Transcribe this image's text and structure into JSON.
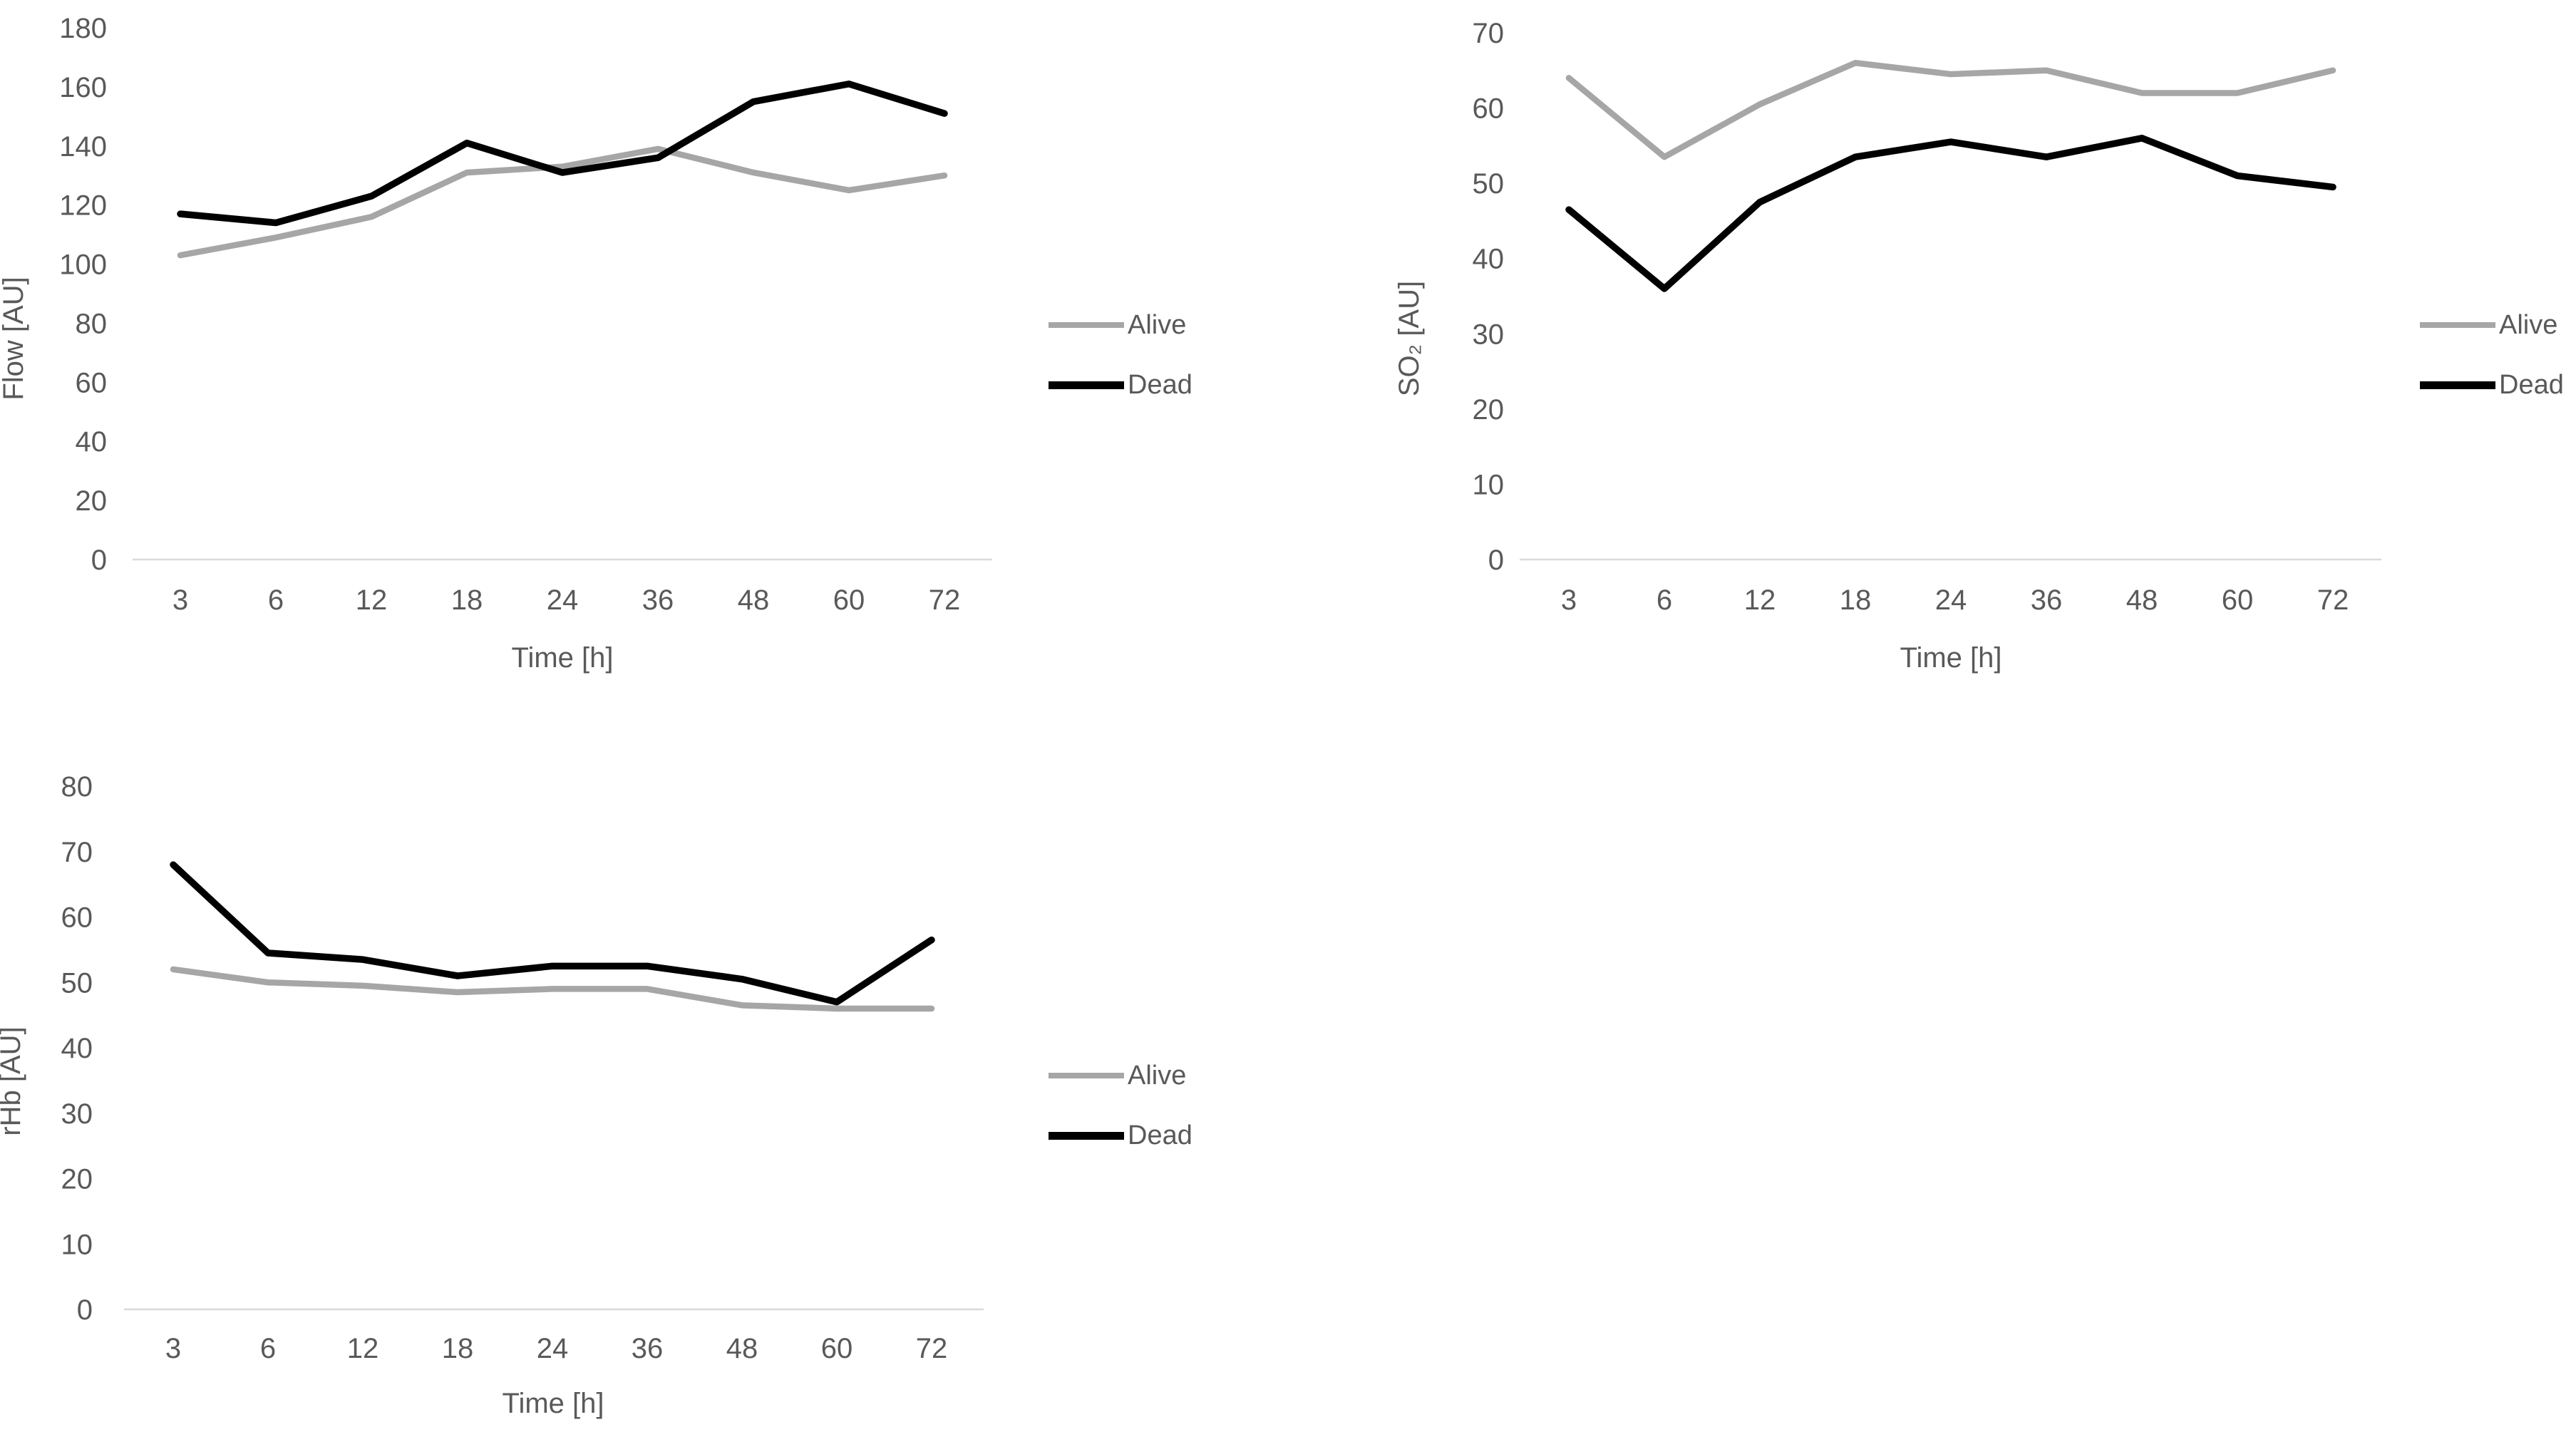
{
  "colors": {
    "alive": "#a6a6a6",
    "dead": "#000000",
    "axis": "#d9d9d9",
    "text": "#595959"
  },
  "chart_data": [
    {
      "id": "flow",
      "type": "line",
      "title": "",
      "xlabel": "Time [h]",
      "ylabel": "Flow [AU]",
      "categories": [
        "3",
        "6",
        "12",
        "18",
        "24",
        "36",
        "48",
        "60",
        "72"
      ],
      "ylim": [
        0,
        180
      ],
      "y_step": 20,
      "grid": false,
      "legend_position": "right",
      "series": [
        {
          "name": "Alive",
          "color_key": "alive",
          "values": [
            103,
            109,
            116,
            131,
            133,
            139,
            131,
            125,
            130
          ]
        },
        {
          "name": "Dead",
          "color_key": "dead",
          "values": [
            117,
            114,
            123,
            141,
            131,
            136,
            155,
            161,
            151
          ]
        }
      ]
    },
    {
      "id": "so2",
      "type": "line",
      "title": "",
      "xlabel": "Time [h]",
      "ylabel": "SO₂ [AU]",
      "categories": [
        "3",
        "6",
        "12",
        "18",
        "24",
        "36",
        "48",
        "60",
        "72"
      ],
      "ylim": [
        0,
        70
      ],
      "y_step": 10,
      "grid": false,
      "legend_position": "right",
      "series": [
        {
          "name": "Alive",
          "color_key": "alive",
          "values": [
            64,
            53.5,
            60.5,
            66,
            64.5,
            65,
            62,
            62,
            65
          ]
        },
        {
          "name": "Dead",
          "color_key": "dead",
          "values": [
            46.5,
            36,
            47.5,
            53.5,
            55.5,
            53.5,
            56,
            51,
            49.5
          ]
        }
      ]
    },
    {
      "id": "rhb",
      "type": "line",
      "title": "",
      "xlabel": "Time [h]",
      "ylabel": "rHb [AU]",
      "categories": [
        "3",
        "6",
        "12",
        "18",
        "24",
        "36",
        "48",
        "60",
        "72"
      ],
      "ylim": [
        0,
        80
      ],
      "y_step": 10,
      "grid": false,
      "legend_position": "right",
      "series": [
        {
          "name": "Alive",
          "color_key": "alive",
          "values": [
            52,
            50,
            49.5,
            48.5,
            49,
            49,
            46.5,
            46,
            46
          ]
        },
        {
          "name": "Dead",
          "color_key": "dead",
          "values": [
            68,
            54.5,
            53.5,
            51,
            52.5,
            52.5,
            50.5,
            47,
            56.5
          ]
        }
      ]
    }
  ]
}
